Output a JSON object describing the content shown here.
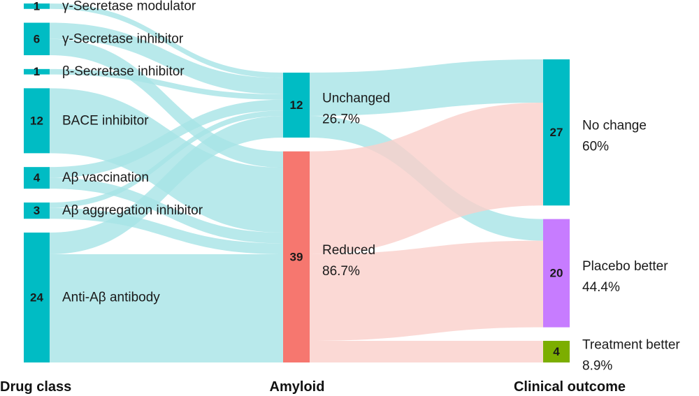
{
  "diagram": {
    "columns": [
      {
        "id": "drug",
        "title": "Drug class"
      },
      {
        "id": "amyloid",
        "title": "Amyloid"
      },
      {
        "id": "outcome",
        "title": "Clinical outcome"
      }
    ],
    "nodes": [
      {
        "id": "gsm",
        "column": "drug",
        "value": 1,
        "value_label": "1",
        "label": "γ-Secretase modulator",
        "color": "#00BCC4"
      },
      {
        "id": "gsi",
        "column": "drug",
        "value": 6,
        "value_label": "6",
        "label": "γ-Secretase inhibitor",
        "color": "#00BCC4"
      },
      {
        "id": "bsi",
        "column": "drug",
        "value": 1,
        "value_label": "1",
        "label": "β-Secretase inhibitor",
        "color": "#00BCC4"
      },
      {
        "id": "bace",
        "column": "drug",
        "value": 12,
        "value_label": "12",
        "label": "BACE inhibitor",
        "color": "#00BCC4"
      },
      {
        "id": "vacc",
        "column": "drug",
        "value": 4,
        "value_label": "4",
        "label": "Aβ vaccination",
        "color": "#00BCC4"
      },
      {
        "id": "aggr",
        "column": "drug",
        "value": 3,
        "value_label": "3",
        "label": "Aβ aggregation inhibitor",
        "color": "#00BCC4"
      },
      {
        "id": "anti",
        "column": "drug",
        "value": 24,
        "value_label": "24",
        "label": "Anti-Aβ antibody",
        "color": "#00BCC4"
      },
      {
        "id": "unch",
        "column": "amyloid",
        "value": 12,
        "value_label": "12",
        "label": "Unchanged",
        "percent": "26.7%",
        "color": "#00BCC4"
      },
      {
        "id": "red",
        "column": "amyloid",
        "value": 39,
        "value_label": "39",
        "label": "Reduced",
        "percent": "86.7%",
        "color": "#F6776F"
      },
      {
        "id": "noch",
        "column": "outcome",
        "value": 27,
        "value_label": "27",
        "label": "No change",
        "percent": "60%",
        "color": "#00BCC4"
      },
      {
        "id": "plac",
        "column": "outcome",
        "value": 20,
        "value_label": "20",
        "label": "Placebo better",
        "percent": "44.4%",
        "color": "#C77CFF"
      },
      {
        "id": "treat",
        "column": "outcome",
        "value": 4,
        "value_label": "4",
        "label": "Treatment better",
        "percent": "8.9%",
        "color": "#7CAE00"
      }
    ],
    "links": [
      {
        "source": "gsm",
        "target": "unch",
        "value": 1
      },
      {
        "source": "gsi",
        "target": "unch",
        "value": 3
      },
      {
        "source": "gsi",
        "target": "red",
        "value": 3
      },
      {
        "source": "bsi",
        "target": "unch",
        "value": 1
      },
      {
        "source": "bace",
        "target": "red",
        "value": 12
      },
      {
        "source": "vacc",
        "target": "unch",
        "value": 2
      },
      {
        "source": "vacc",
        "target": "red",
        "value": 2
      },
      {
        "source": "aggr",
        "target": "unch",
        "value": 1
      },
      {
        "source": "aggr",
        "target": "red",
        "value": 2
      },
      {
        "source": "anti",
        "target": "unch",
        "value": 4
      },
      {
        "source": "anti",
        "target": "red",
        "value": 20
      },
      {
        "source": "unch",
        "target": "noch",
        "value": 8
      },
      {
        "source": "unch",
        "target": "plac",
        "value": 4
      },
      {
        "source": "red",
        "target": "noch",
        "value": 19
      },
      {
        "source": "red",
        "target": "plac",
        "value": 16
      },
      {
        "source": "red",
        "target": "treat",
        "value": 4
      }
    ],
    "link_colors": {
      "unch": "#A6E4E6",
      "red": "#FAD0CB",
      "default": "#A6E4E6"
    },
    "link_opacity": 0.8
  }
}
